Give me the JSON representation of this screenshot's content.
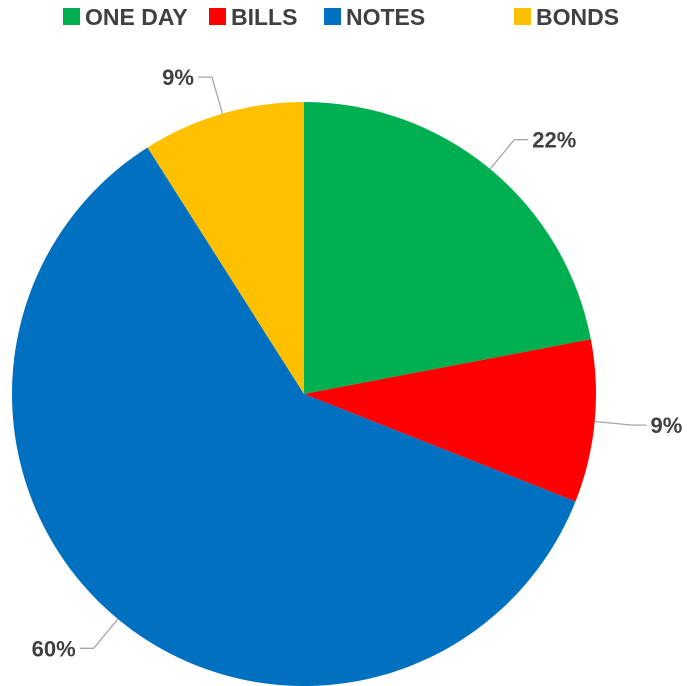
{
  "chart_data": {
    "type": "pie",
    "categories": [
      "ONE DAY",
      "BILLS",
      "NOTES",
      "BONDS"
    ],
    "values": [
      22,
      9,
      60,
      9
    ],
    "data_labels": [
      "22%",
      "9%",
      "60%",
      "9%"
    ],
    "colors": [
      "#00b050",
      "#ff0000",
      "#0070c0",
      "#ffc000"
    ],
    "start_angle_deg": 0,
    "direction": "clockwise",
    "legend_position": "top",
    "title": ""
  }
}
